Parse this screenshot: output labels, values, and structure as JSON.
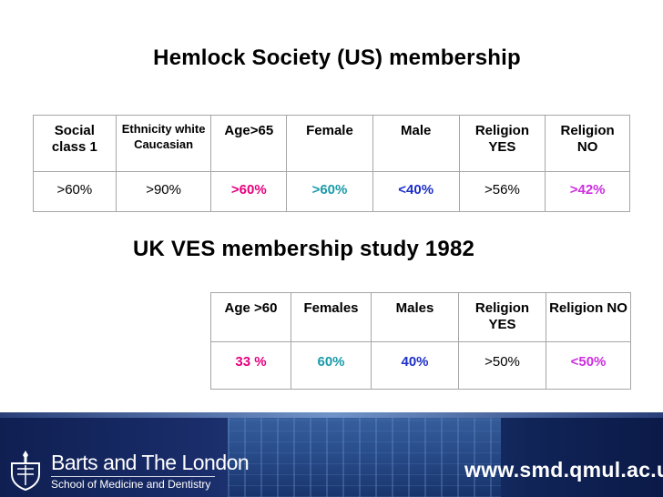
{
  "title1": "Hemlock Society (US) membership",
  "title2": "UK VES membership study 1982",
  "table1": {
    "headers": [
      "Social class 1",
      "Ethnicity white Caucasian",
      "Age>65",
      "Female",
      "Male",
      "Religion YES",
      "Religion NO"
    ],
    "values": [
      ">60%",
      ">90%",
      ">60%",
      ">60%",
      "<40%",
      ">56%",
      ">42%"
    ]
  },
  "table2": {
    "headers": [
      "Age >60",
      "Females",
      "Males",
      "Religion YES",
      "Religion NO"
    ],
    "values": [
      "33 %",
      "60%",
      "40%",
      ">50%",
      "<50%"
    ]
  },
  "footer": {
    "brand": "Barts and The London",
    "subtitle": "School of Medicine and Dentistry",
    "url": "www.smd.qmul.ac.uk"
  },
  "colors": {
    "pink": "#e6007e",
    "teal": "#1a9ba8",
    "blue": "#1c2fc7",
    "purple": "#cc2ee0",
    "footer_bg": "#1a2d6a"
  }
}
